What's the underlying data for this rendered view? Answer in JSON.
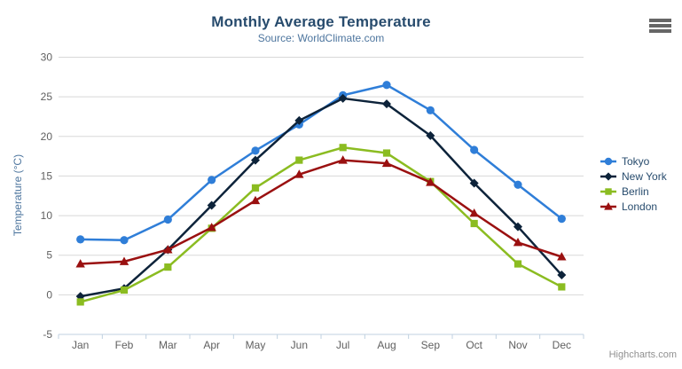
{
  "credit": {
    "label": "Highcharts.com"
  },
  "colors": {
    "title_text": "#274b6d",
    "subtitle_text": "#4d759e",
    "axis_label_text": "#606060",
    "axis_line": "#c0d0e0",
    "gridline": "#d8d8d8",
    "legend_text": "#274b6d",
    "credit_text": "#909090",
    "menu_icon": "#666666"
  },
  "icons": {
    "menu": "hamburger-menu-icon"
  },
  "chart_data": {
    "type": "line",
    "title": "Monthly Average Temperature",
    "subtitle": "Source: WorldClimate.com",
    "categories": [
      "Jan",
      "Feb",
      "Mar",
      "Apr",
      "May",
      "Jun",
      "Jul",
      "Aug",
      "Sep",
      "Oct",
      "Nov",
      "Dec"
    ],
    "xlabel": "",
    "ylabel": "Temperature (°C)",
    "ylim": [
      -5,
      30
    ],
    "yticks": [
      -5,
      0,
      5,
      10,
      15,
      20,
      25,
      30
    ],
    "grid": true,
    "legend_position": "right",
    "series": [
      {
        "name": "Tokyo",
        "color": "#2f7ed8",
        "marker": "circle",
        "values": [
          7.0,
          6.9,
          9.5,
          14.5,
          18.2,
          21.5,
          25.2,
          26.5,
          23.3,
          18.3,
          13.9,
          9.6
        ]
      },
      {
        "name": "New York",
        "color": "#0d233a",
        "marker": "diamond",
        "values": [
          -0.2,
          0.8,
          5.7,
          11.3,
          17.0,
          22.0,
          24.8,
          24.1,
          20.1,
          14.1,
          8.6,
          2.5
        ]
      },
      {
        "name": "Berlin",
        "color": "#8bbc21",
        "marker": "square",
        "values": [
          -0.9,
          0.6,
          3.5,
          8.4,
          13.5,
          17.0,
          18.6,
          17.9,
          14.3,
          9.0,
          3.9,
          1.0
        ]
      },
      {
        "name": "London",
        "color": "#9a1010",
        "marker": "triangle",
        "values": [
          3.9,
          4.2,
          5.7,
          8.5,
          11.9,
          15.2,
          17.0,
          16.6,
          14.2,
          10.3,
          6.6,
          4.8
        ]
      }
    ]
  }
}
